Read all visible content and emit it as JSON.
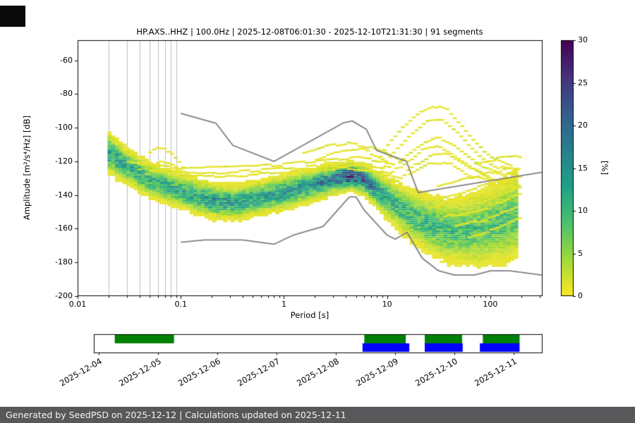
{
  "chart_data": {
    "type": "heatmap",
    "title": "HP.AXS..HHZ | 100.0Hz | 2025-12-08T06:01:30 - 2025-12-10T21:31:30 | 91 segments",
    "xlabel": "Period [s]",
    "ylabel": "Amplitude [m²/s⁴/Hz] [dB]",
    "x_scale": "log",
    "xlim": [
      0.01,
      316.23
    ],
    "ylim": [
      -200,
      -48
    ],
    "segments": 91,
    "quantum_percent": 1.0989,
    "x_ticks": [
      {
        "v": 0.01,
        "label": "0.01"
      },
      {
        "v": 0.1,
        "label": "0.1"
      },
      {
        "v": 1,
        "label": "1"
      },
      {
        "v": 10,
        "label": "10"
      },
      {
        "v": 100,
        "label": "100"
      }
    ],
    "y_ticks": [
      {
        "v": -60,
        "label": "-60"
      },
      {
        "v": -80,
        "label": "-80"
      },
      {
        "v": -100,
        "label": "-100"
      },
      {
        "v": -120,
        "label": "-120"
      },
      {
        "v": -140,
        "label": "-140"
      },
      {
        "v": -160,
        "label": "-160"
      },
      {
        "v": -180,
        "label": "-180"
      },
      {
        "v": -200,
        "label": "-200"
      }
    ],
    "grid_periods": [
      0.02,
      0.03,
      0.04,
      0.05,
      0.06,
      0.07,
      0.08,
      0.09
    ],
    "colorbar": {
      "label": "[%]",
      "min": 0,
      "max": 30,
      "ticks": [
        {
          "v": 0,
          "label": "0"
        },
        {
          "v": 5,
          "label": "5"
        },
        {
          "v": 10,
          "label": "10"
        },
        {
          "v": 15,
          "label": "15"
        },
        {
          "v": 20,
          "label": "20"
        },
        {
          "v": 25,
          "label": "25"
        },
        {
          "v": 30,
          "label": "30"
        }
      ],
      "stops": [
        "#440154",
        "#46327e",
        "#365c8d",
        "#277f8e",
        "#1fa187",
        "#4ac16d",
        "#a0da39",
        "#fde725"
      ]
    },
    "noise_models": {
      "color": "#7f7f7f",
      "high": [
        [
          0.1,
          -91.5
        ],
        [
          0.22,
          -97.4
        ],
        [
          0.32,
          -110.5
        ],
        [
          0.8,
          -120.0
        ],
        [
          3.8,
          -97.0
        ],
        [
          4.6,
          -96.0
        ],
        [
          6.3,
          -101.0
        ],
        [
          7.9,
          -113.5
        ],
        [
          15.4,
          -120.0
        ],
        [
          20.0,
          -138.5
        ],
        [
          316.0,
          -126.5
        ]
      ],
      "low": [
        [
          0.1,
          -168.0
        ],
        [
          0.17,
          -166.7
        ],
        [
          0.4,
          -166.7
        ],
        [
          0.8,
          -169.2
        ],
        [
          1.24,
          -163.7
        ],
        [
          2.4,
          -158.6
        ],
        [
          4.3,
          -141.1
        ],
        [
          5.0,
          -141.1
        ],
        [
          6.0,
          -149.0
        ],
        [
          10.0,
          -163.8
        ],
        [
          12.0,
          -166.2
        ],
        [
          15.6,
          -162.1
        ],
        [
          21.9,
          -177.5
        ],
        [
          31.6,
          -185.0
        ],
        [
          45.0,
          -187.5
        ],
        [
          70.0,
          -187.5
        ],
        [
          101.0,
          -185.0
        ],
        [
          154.0,
          -185.0
        ],
        [
          316.0,
          -187.5
        ]
      ]
    },
    "ppsd_band": [
      {
        "p": 0.02,
        "db": -115.0,
        "sigma": 5.5,
        "peak": 13
      },
      {
        "p": 0.03,
        "db": -123.0,
        "sigma": 4.5,
        "peak": 13
      },
      {
        "p": 0.05,
        "db": -131.0,
        "sigma": 4.5,
        "peak": 12
      },
      {
        "p": 0.08,
        "db": -136.0,
        "sigma": 4.5,
        "peak": 12
      },
      {
        "p": 0.13,
        "db": -140.0,
        "sigma": 4.5,
        "peak": 13
      },
      {
        "p": 0.22,
        "db": -144.0,
        "sigma": 4.5,
        "peak": 15
      },
      {
        "p": 0.35,
        "db": -144.5,
        "sigma": 4.5,
        "peak": 14
      },
      {
        "p": 0.6,
        "db": -141.5,
        "sigma": 4.5,
        "peak": 13
      },
      {
        "p": 1.0,
        "db": -138.5,
        "sigma": 4.5,
        "peak": 14
      },
      {
        "p": 1.8,
        "db": -134.5,
        "sigma": 4.2,
        "peak": 15
      },
      {
        "p": 3.0,
        "db": -130.5,
        "sigma": 4.0,
        "peak": 18
      },
      {
        "p": 4.5,
        "db": -128.5,
        "sigma": 3.4,
        "peak": 28
      },
      {
        "p": 6.0,
        "db": -131.0,
        "sigma": 3.8,
        "peak": 20
      },
      {
        "p": 8.0,
        "db": -137.0,
        "sigma": 4.6,
        "peak": 15
      },
      {
        "p": 11,
        "db": -144.0,
        "sigma": 5.5,
        "peak": 12
      },
      {
        "p": 16,
        "db": -151.0,
        "sigma": 6.5,
        "peak": 10.5
      },
      {
        "p": 25,
        "db": -157.5,
        "sigma": 7.5,
        "peak": 10
      },
      {
        "p": 40,
        "db": -161.5,
        "sigma": 8.5,
        "peak": 9.5
      },
      {
        "p": 70,
        "db": -161.0,
        "sigma": 9.5,
        "peak": 9
      },
      {
        "p": 110,
        "db": -157.5,
        "sigma": 10.5,
        "peak": 9
      },
      {
        "p": 180,
        "db": -152.0,
        "sigma": 11.5,
        "peak": 9
      }
    ],
    "scatter_lines": [
      [
        [
          0.038,
          -124
        ],
        [
          0.05,
          -114
        ],
        [
          0.065,
          -111
        ],
        [
          0.08,
          -116
        ],
        [
          0.1,
          -123
        ]
      ],
      [
        [
          0.045,
          -127
        ],
        [
          0.06,
          -119
        ],
        [
          0.08,
          -122
        ],
        [
          0.11,
          -127
        ]
      ],
      [
        [
          0.03,
          -121
        ],
        [
          0.1,
          -124
        ],
        [
          0.3,
          -123
        ],
        [
          0.8,
          -122
        ],
        [
          2,
          -120
        ],
        [
          5,
          -118
        ],
        [
          9,
          -120
        ]
      ],
      [
        [
          0.05,
          -126
        ],
        [
          0.2,
          -127
        ],
        [
          0.7,
          -125
        ],
        [
          2,
          -123
        ],
        [
          6,
          -122
        ],
        [
          10,
          -124
        ]
      ],
      [
        [
          0.1,
          -129
        ],
        [
          0.5,
          -128
        ],
        [
          1.5,
          -126
        ],
        [
          4,
          -124
        ],
        [
          8,
          -126
        ],
        [
          12,
          -129
        ]
      ],
      [
        [
          1.5,
          -115
        ],
        [
          2.5,
          -111
        ],
        [
          4,
          -109
        ],
        [
          6,
          -111
        ],
        [
          9,
          -115
        ],
        [
          13,
          -120
        ]
      ],
      [
        [
          2,
          -119
        ],
        [
          3.5,
          -114
        ],
        [
          5.5,
          -113
        ],
        [
          8,
          -117
        ],
        [
          11,
          -122
        ]
      ],
      [
        [
          7,
          -123
        ],
        [
          10,
          -110
        ],
        [
          14,
          -99
        ],
        [
          20,
          -90
        ],
        [
          27,
          -87
        ],
        [
          38,
          -90
        ],
        [
          50,
          -98
        ],
        [
          65,
          -107
        ],
        [
          85,
          -114
        ],
        [
          110,
          -119
        ],
        [
          150,
          -122
        ]
      ],
      [
        [
          8,
          -126
        ],
        [
          12,
          -113
        ],
        [
          17,
          -103
        ],
        [
          24,
          -96
        ],
        [
          33,
          -96
        ],
        [
          45,
          -103
        ],
        [
          60,
          -111
        ],
        [
          80,
          -118
        ],
        [
          110,
          -123
        ],
        [
          160,
          -125
        ]
      ],
      [
        [
          10,
          -128
        ],
        [
          15,
          -117
        ],
        [
          22,
          -109
        ],
        [
          30,
          -106
        ],
        [
          42,
          -110
        ],
        [
          58,
          -117
        ],
        [
          80,
          -123
        ],
        [
          120,
          -127
        ],
        [
          170,
          -128
        ]
      ],
      [
        [
          12,
          -131
        ],
        [
          18,
          -122
        ],
        [
          26,
          -116
        ],
        [
          36,
          -115
        ],
        [
          50,
          -120
        ],
        [
          70,
          -126
        ],
        [
          100,
          -130
        ],
        [
          160,
          -131
        ]
      ],
      [
        [
          30,
          -135
        ],
        [
          60,
          -130
        ],
        [
          110,
          -126
        ],
        [
          180,
          -124
        ]
      ],
      [
        [
          35,
          -141
        ],
        [
          70,
          -136
        ],
        [
          130,
          -131
        ],
        [
          185,
          -129
        ]
      ],
      [
        [
          28,
          -147
        ],
        [
          55,
          -144
        ],
        [
          100,
          -139
        ],
        [
          180,
          -134
        ]
      ],
      [
        [
          35,
          -153
        ],
        [
          70,
          -149
        ],
        [
          130,
          -144
        ],
        [
          185,
          -140
        ]
      ],
      [
        [
          45,
          -159
        ],
        [
          90,
          -154
        ],
        [
          170,
          -148
        ]
      ],
      [
        [
          60,
          -165
        ],
        [
          120,
          -159
        ],
        [
          185,
          -154
        ]
      ],
      [
        [
          0.02,
          -107
        ],
        [
          0.026,
          -112
        ],
        [
          0.033,
          -117
        ]
      ],
      [
        [
          0.15,
          -152
        ],
        [
          0.3,
          -153
        ],
        [
          0.6,
          -150
        ],
        [
          1,
          -148
        ]
      ],
      [
        [
          13,
          -124
        ],
        [
          20,
          -114
        ],
        [
          30,
          -111
        ],
        [
          45,
          -117
        ],
        [
          65,
          -124
        ],
        [
          90,
          -129
        ]
      ],
      [
        [
          16,
          -128
        ],
        [
          25,
          -121
        ],
        [
          40,
          -122
        ],
        [
          60,
          -128
        ],
        [
          100,
          -132
        ],
        [
          150,
          -133
        ]
      ],
      [
        [
          70,
          -121
        ],
        [
          120,
          -118
        ],
        [
          185,
          -117
        ]
      ],
      [
        [
          80,
          -144
        ],
        [
          140,
          -138
        ],
        [
          185,
          -136
        ]
      ]
    ]
  },
  "timeline": {
    "axis_days": [
      -0.083,
      7.476
    ],
    "ticks": [
      {
        "day": 0,
        "label": "2025-12-04"
      },
      {
        "day": 1,
        "label": "2025-12-05"
      },
      {
        "day": 2,
        "label": "2025-12-06"
      },
      {
        "day": 3,
        "label": "2025-12-07"
      },
      {
        "day": 4,
        "label": "2025-12-08"
      },
      {
        "day": 5,
        "label": "2025-12-09"
      },
      {
        "day": 6,
        "label": "2025-12-10"
      },
      {
        "day": 7,
        "label": "2025-12-11"
      }
    ],
    "green_segments": [
      [
        0.27,
        1.27
      ],
      [
        4.48,
        5.18
      ],
      [
        5.5,
        6.13
      ],
      [
        6.48,
        7.1
      ]
    ],
    "blue_segments": [
      [
        4.45,
        5.24
      ],
      [
        5.5,
        6.14
      ],
      [
        6.43,
        7.1
      ]
    ],
    "colors": {
      "green": "#008000",
      "blue": "#0000ff"
    }
  },
  "footer": {
    "text": "Generated by SeedPSD on 2025-12-12 | Calculations updated on 2025-12-11",
    "bg": "#58585a"
  }
}
